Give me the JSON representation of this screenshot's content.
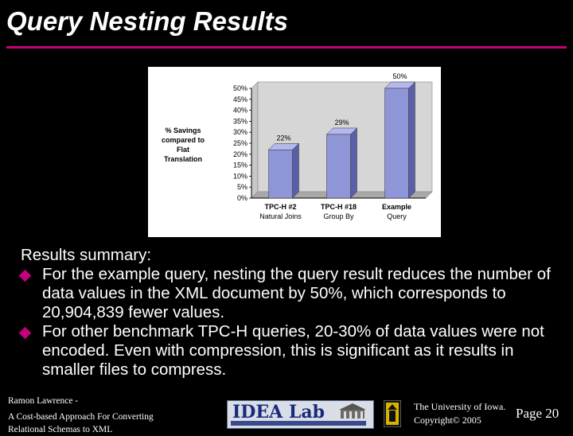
{
  "slide": {
    "title": "Query Nesting Results"
  },
  "chart_data": {
    "type": "bar",
    "ylabel": "% Savings compared to Flat Translation",
    "ylabel_lines": [
      "% Savings",
      "compared to",
      "Flat",
      "Translation"
    ],
    "categories": [
      "TPC-H #2 Natural Joins",
      "TPC-H #18 Group By",
      "Example Query"
    ],
    "category_lines": [
      [
        "TPC-H #2",
        "Natural Joins"
      ],
      [
        "TPC-H #18",
        "Group By"
      ],
      [
        "Example",
        "Query"
      ]
    ],
    "values": [
      22,
      29,
      50
    ],
    "data_labels": [
      "22%",
      "29%",
      "50%"
    ],
    "ylim": [
      0,
      50
    ],
    "yticks": [
      "0%",
      "5%",
      "10%",
      "15%",
      "20%",
      "25%",
      "30%",
      "35%",
      "40%",
      "45%",
      "50%"
    ],
    "grid": false,
    "legend": "none",
    "bar_color": "#8f96d8"
  },
  "summary": {
    "heading": "Results summary:",
    "bullets": [
      "For the example query, nesting the query result reduces the number of data values in the XML document by 50%, which corresponds to 20,904,839 fewer values.",
      "For other benchmark TPC-H queries, 20-30% of data values were not encoded. Even with compression, this is significant as it results in smaller files to compress."
    ]
  },
  "footer": {
    "author": "Ramon Lawrence -",
    "talk_line1": "A Cost-based Approach For Converting",
    "talk_line2": "Relational Schemas to XML",
    "lab_logo": "IDEA Lab",
    "university": "The University of Iowa.",
    "copyright": "Copyright© 2005",
    "page": "Page 20"
  },
  "colors": {
    "background": "#000000",
    "accent": "#c4007c",
    "text": "#ffffff"
  }
}
